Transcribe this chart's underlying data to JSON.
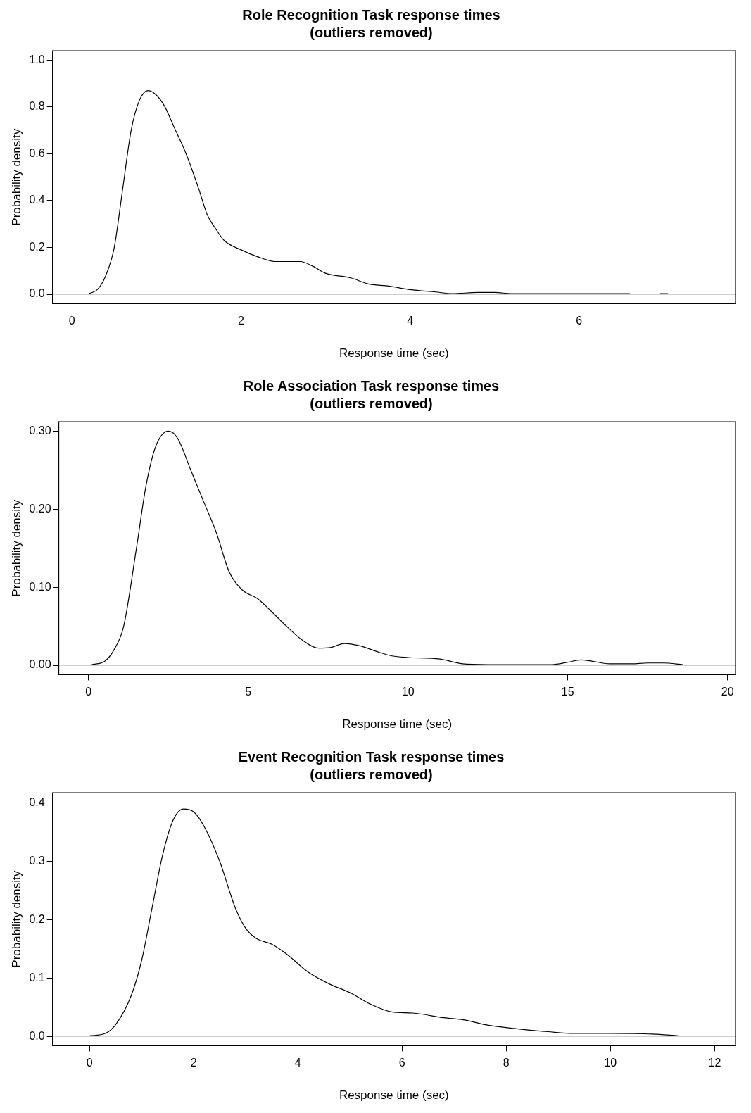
{
  "chart_data": [
    {
      "type": "line",
      "title": "Role Recognition Task response times\n(outliers removed)",
      "xlabel": "Response time (sec)",
      "ylabel": "Probability density",
      "grid": false,
      "legend": false,
      "marker": "none",
      "line_style": "solid",
      "xlim": [
        -0.23,
        7.85
      ],
      "xticks": [
        0,
        2,
        4,
        6
      ],
      "ylim": [
        -0.04,
        1.04
      ],
      "yticks": [
        {
          "value": 0,
          "label": "0.0"
        },
        0.2,
        0.4,
        0.6,
        0.8,
        {
          "value": 1,
          "label": "1.0"
        }
      ],
      "ref_lines": [
        {
          "axis": "y",
          "value": 0,
          "color": "#bebebe"
        }
      ],
      "series": [
        {
          "color": "#000000",
          "x": [
            0.2,
            0.3,
            0.4,
            0.5,
            0.6,
            0.7,
            0.8,
            0.9,
            1.0,
            1.1,
            1.2,
            1.35,
            1.5,
            1.6,
            1.7,
            1.8,
            2.0,
            2.2,
            2.4,
            2.7,
            2.85,
            3.0,
            3.3,
            3.5,
            3.75,
            4.0,
            4.3,
            4.5,
            4.8,
            5.0,
            5.2,
            6.0,
            6.6,
            6.8,
            6.95,
            7.05
          ],
          "values": [
            0.003,
            0.02,
            0.08,
            0.2,
            0.45,
            0.7,
            0.83,
            0.87,
            0.85,
            0.8,
            0.72,
            0.6,
            0.45,
            0.34,
            0.28,
            0.23,
            0.19,
            0.16,
            0.14,
            0.14,
            0.12,
            0.09,
            0.07,
            0.045,
            0.035,
            0.02,
            0.01,
            0.003,
            0.008,
            0.008,
            0.003,
            0.003,
            0.003,
            null,
            0.003,
            0.003
          ]
        }
      ]
    },
    {
      "type": "line",
      "title": "Role Association Task response times\n(outliers removed)",
      "xlabel": "Response time (sec)",
      "ylabel": "Probability density",
      "grid": false,
      "legend": false,
      "marker": "none",
      "line_style": "solid",
      "xlim": [
        -0.93,
        20.25
      ],
      "xticks": [
        0,
        5,
        10,
        15,
        20
      ],
      "ylim": [
        -0.012,
        0.312
      ],
      "yticks": [
        {
          "value": 0,
          "label": "0.00"
        },
        {
          "value": 0.1,
          "label": "0.10"
        },
        {
          "value": 0.2,
          "label": "0.20"
        },
        {
          "value": 0.3,
          "label": "0.30"
        }
      ],
      "ref_lines": [
        {
          "axis": "y",
          "value": 0,
          "color": "#bebebe"
        }
      ],
      "series": [
        {
          "color": "#000000",
          "x": [
            0.1,
            0.5,
            0.8,
            1.1,
            1.5,
            1.8,
            2.1,
            2.5,
            2.8,
            3.2,
            3.6,
            4.0,
            4.4,
            4.8,
            5.3,
            5.7,
            6.2,
            6.7,
            7.2,
            7.6,
            8.0,
            8.5,
            9.0,
            9.5,
            10,
            11,
            11.7,
            12.5,
            14.5,
            15,
            15.4,
            15.8,
            16.3,
            17,
            17.5,
            18,
            18.6
          ],
          "values": [
            0.001,
            0.005,
            0.02,
            0.05,
            0.15,
            0.23,
            0.28,
            0.3,
            0.29,
            0.25,
            0.21,
            0.17,
            0.12,
            0.097,
            0.085,
            0.07,
            0.05,
            0.032,
            0.022,
            0.023,
            0.028,
            0.025,
            0.018,
            0.012,
            0.01,
            0.008,
            0.002,
            0.001,
            0.001,
            0.004,
            0.007,
            0.005,
            0.002,
            0.002,
            0.003,
            0.003,
            0.001
          ]
        }
      ]
    },
    {
      "type": "line",
      "title": "Event Recognition Task response times\n(outliers removed)",
      "xlabel": "Response time (sec)",
      "ylabel": "Probability density",
      "grid": false,
      "legend": false,
      "marker": "none",
      "line_style": "solid",
      "xlim": [
        -0.71,
        12.4
      ],
      "xticks": [
        0,
        2,
        4,
        6,
        8,
        10,
        12
      ],
      "ylim": [
        -0.016,
        0.418
      ],
      "yticks": [
        {
          "value": 0,
          "label": "0.0"
        },
        0.1,
        0.2,
        0.3,
        0.4
      ],
      "ref_lines": [
        {
          "axis": "y",
          "value": 0,
          "color": "#bebebe"
        }
      ],
      "series": [
        {
          "color": "#000000",
          "x": [
            0,
            0.3,
            0.5,
            0.8,
            1.0,
            1.2,
            1.4,
            1.6,
            1.8,
            2.0,
            2.2,
            2.5,
            2.8,
            3.0,
            3.2,
            3.5,
            3.8,
            4.2,
            4.6,
            5.0,
            5.4,
            5.8,
            6.2,
            6.8,
            7.2,
            7.6,
            8.2,
            8.8,
            9.3,
            10,
            10.8,
            11.3
          ],
          "values": [
            0.001,
            0.005,
            0.02,
            0.07,
            0.13,
            0.22,
            0.31,
            0.37,
            0.39,
            0.385,
            0.36,
            0.3,
            0.22,
            0.185,
            0.168,
            0.158,
            0.14,
            0.11,
            0.09,
            0.075,
            0.055,
            0.042,
            0.04,
            0.032,
            0.028,
            0.02,
            0.013,
            0.008,
            0.005,
            0.005,
            0.004,
            0.001
          ]
        }
      ]
    }
  ]
}
